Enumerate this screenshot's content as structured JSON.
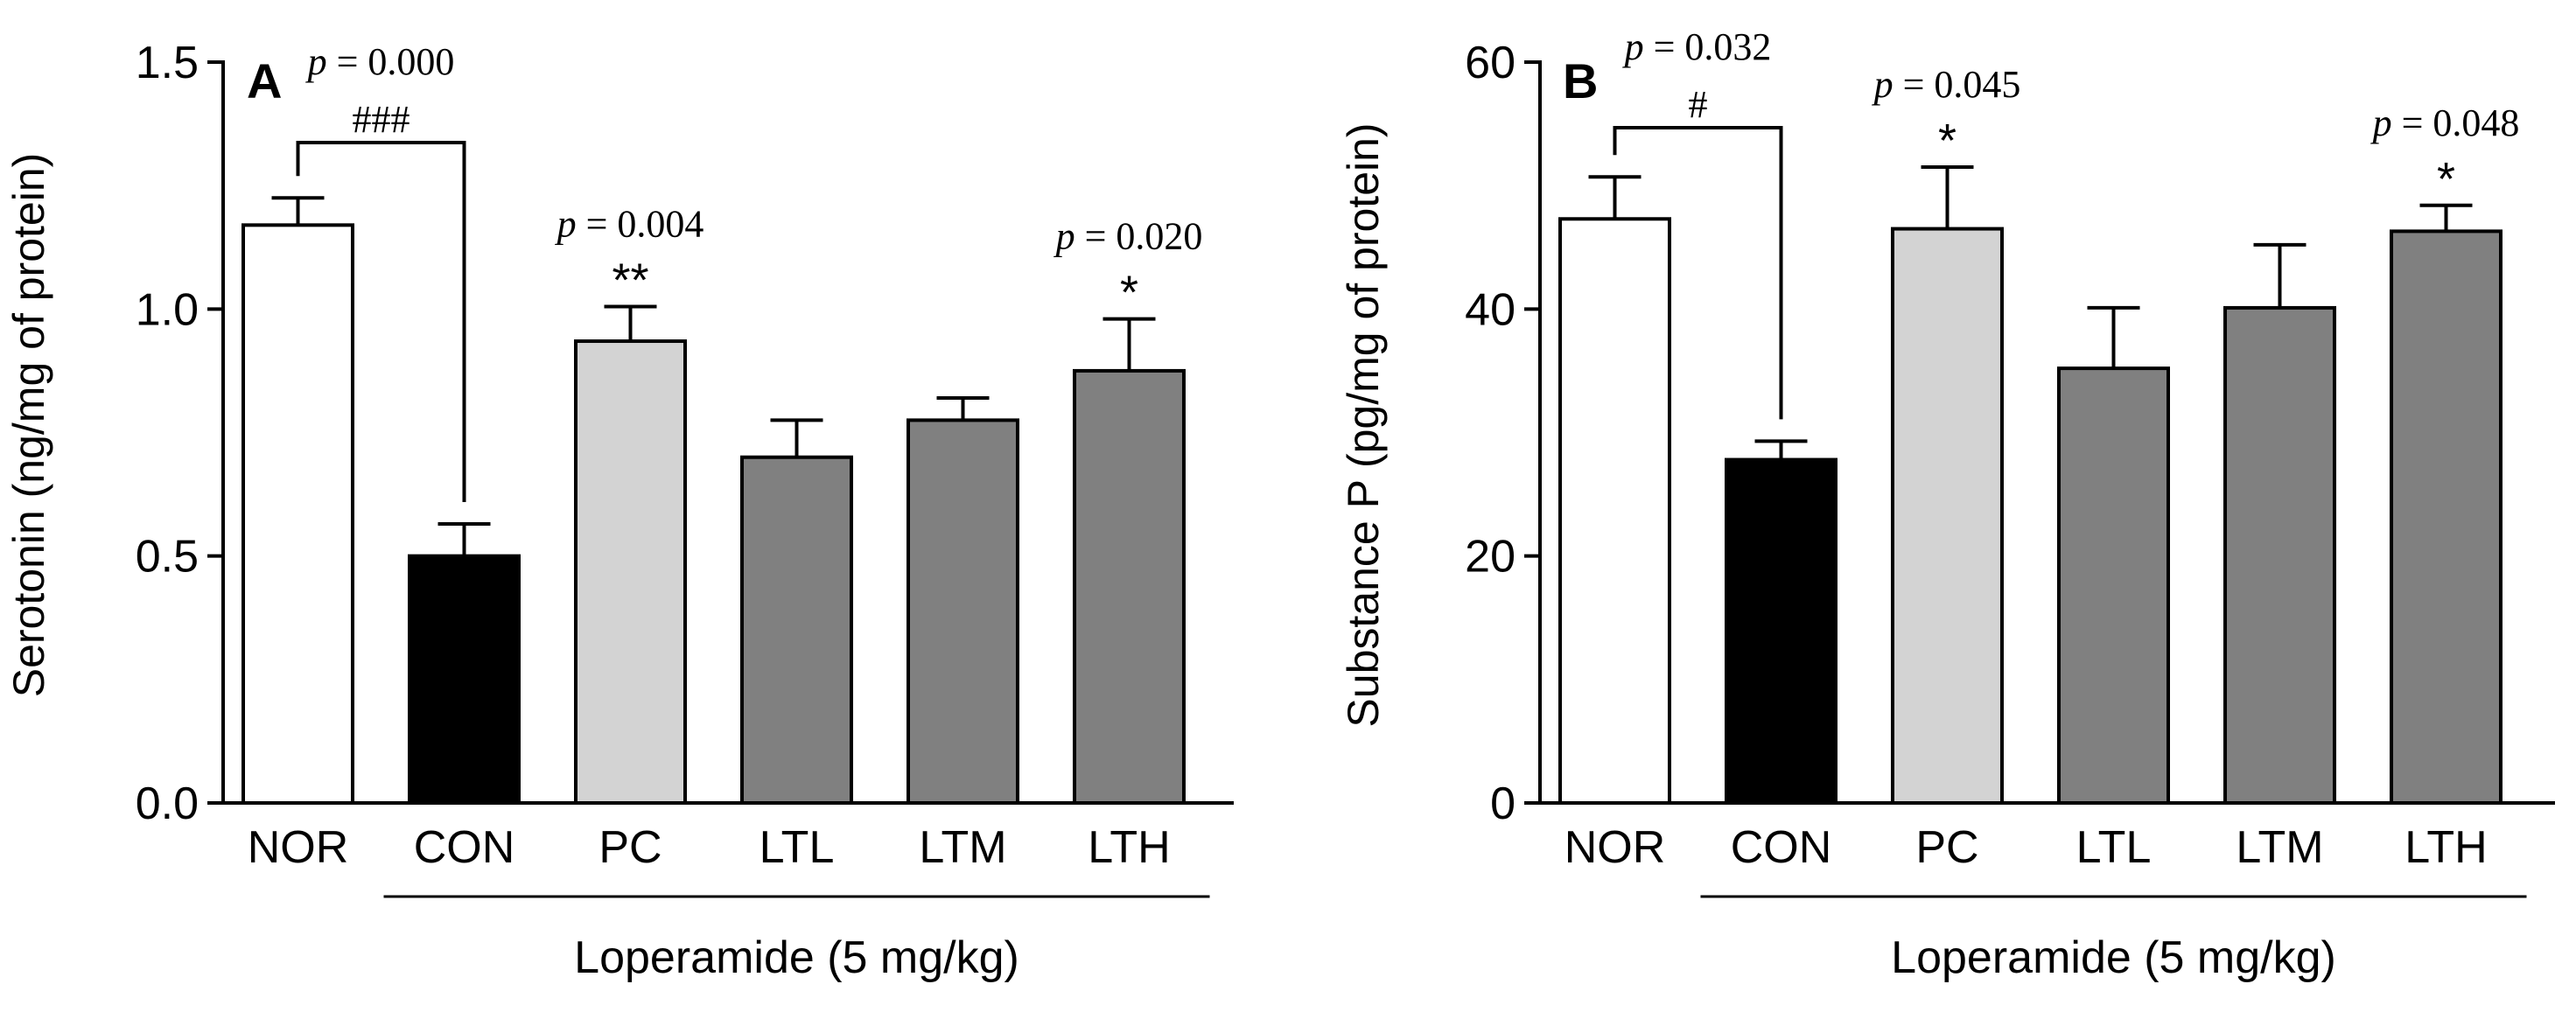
{
  "chart_data": [
    {
      "type": "bar",
      "panel_label": "A",
      "ylabel": "Serotonin (ng/mg of protein)",
      "ylim": [
        0,
        1.5
      ],
      "yticks": [
        "0.0",
        "0.5",
        "1.0",
        "1.5"
      ],
      "ytick_values": [
        0,
        0.5,
        1.0,
        1.5
      ],
      "categories": [
        "NOR",
        "CON",
        "PC",
        "LTL",
        "LTM",
        "LTH"
      ],
      "values": [
        1.17,
        0.5,
        0.935,
        0.7,
        0.775,
        0.875
      ],
      "errors": [
        0.055,
        0.065,
        0.07,
        0.075,
        0.045,
        0.105
      ],
      "colors": [
        "#ffffff",
        "#000000",
        "#d3d3d3",
        "#808080",
        "#808080",
        "#808080"
      ],
      "group_label": "Loperamide (5 mg/kg)",
      "bracket": {
        "from": "NOR",
        "to": "CON",
        "mark": "###",
        "p_label": "p = 0.000"
      },
      "annotations": [
        {
          "category": "PC",
          "mark": "**",
          "p_label": "p = 0.004"
        },
        {
          "category": "LTH",
          "mark": "*",
          "p_label": "p = 0.020"
        }
      ]
    },
    {
      "type": "bar",
      "panel_label": "B",
      "ylabel": "Substance P (pg/mg of protein)",
      "ylim": [
        0,
        60
      ],
      "yticks": [
        "0",
        "20",
        "40",
        "60"
      ],
      "ytick_values": [
        0,
        20,
        40,
        60
      ],
      "categories": [
        "NOR",
        "CON",
        "PC",
        "LTL",
        "LTM",
        "LTH"
      ],
      "values": [
        47.3,
        27.8,
        46.5,
        35.2,
        40.1,
        46.3
      ],
      "errors": [
        3.4,
        1.5,
        5.0,
        4.9,
        5.1,
        2.1
      ],
      "colors": [
        "#ffffff",
        "#000000",
        "#d3d3d3",
        "#808080",
        "#808080",
        "#808080"
      ],
      "group_label": "Loperamide (5 mg/kg)",
      "bracket": {
        "from": "NOR",
        "to": "CON",
        "mark": "#",
        "p_label": "p = 0.032"
      },
      "annotations": [
        {
          "category": "PC",
          "mark": "*",
          "p_label": "p = 0.045"
        },
        {
          "category": "LTH",
          "mark": "*",
          "p_label": "p = 0.048"
        }
      ]
    }
  ]
}
